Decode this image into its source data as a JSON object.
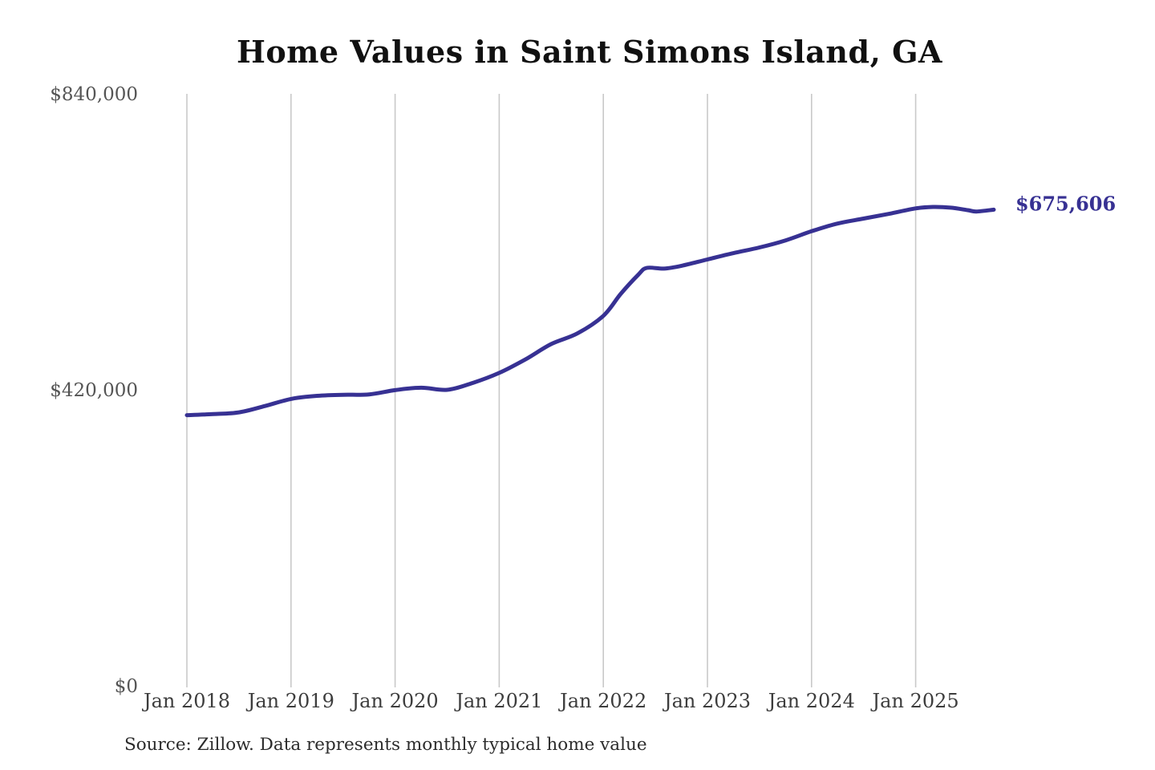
{
  "page": {
    "title": "Home Values in Saint Simons Island, GA",
    "source_note": "Source: Zillow. Data represents monthly typical home value"
  },
  "colors": {
    "background": "#ffffff",
    "line": "#373193",
    "grid": "#c9c9c9",
    "y_tick_text": "#555555",
    "x_tick_text": "#3d3d3d",
    "title_text": "#111111",
    "source_text": "#2b2b2b",
    "end_label_text": "#373193"
  },
  "chart_data": {
    "type": "line",
    "title": "Home Values in Saint Simons Island, GA",
    "xlabel": "",
    "ylabel": "",
    "ylim": [
      0,
      840000
    ],
    "grid": "vertical-only",
    "legend": "none",
    "y_ticks": [
      {
        "value": 840000,
        "label": "$840,000"
      },
      {
        "value": 420000,
        "label": "$420,000"
      },
      {
        "value": 0,
        "label": "$0"
      }
    ],
    "x_ticks": [
      {
        "date": "2018-01",
        "label": "Jan 2018"
      },
      {
        "date": "2019-01",
        "label": "Jan 2019"
      },
      {
        "date": "2020-01",
        "label": "Jan 2020"
      },
      {
        "date": "2021-01",
        "label": "Jan 2021"
      },
      {
        "date": "2022-01",
        "label": "Jan 2022"
      },
      {
        "date": "2023-01",
        "label": "Jan 2023"
      },
      {
        "date": "2024-01",
        "label": "Jan 2024"
      },
      {
        "date": "2025-01",
        "label": "Jan 2025"
      }
    ],
    "end_annotation": {
      "label": "$675,606",
      "value": 675606,
      "date": "2025-10"
    },
    "series": [
      {
        "name": "Monthly typical home value",
        "points": [
          {
            "date": "2018-01",
            "value": 384000
          },
          {
            "date": "2018-04",
            "value": 385500
          },
          {
            "date": "2018-07",
            "value": 388000
          },
          {
            "date": "2018-10",
            "value": 397000
          },
          {
            "date": "2019-01",
            "value": 407000
          },
          {
            "date": "2019-04",
            "value": 411500
          },
          {
            "date": "2019-07",
            "value": 413000
          },
          {
            "date": "2019-10",
            "value": 413500
          },
          {
            "date": "2020-01",
            "value": 419500
          },
          {
            "date": "2020-04",
            "value": 423000
          },
          {
            "date": "2020-07",
            "value": 420000
          },
          {
            "date": "2020-10",
            "value": 430000
          },
          {
            "date": "2021-01",
            "value": 444000
          },
          {
            "date": "2021-04",
            "value": 463000
          },
          {
            "date": "2021-07",
            "value": 485000
          },
          {
            "date": "2021-10",
            "value": 500000
          },
          {
            "date": "2022-01",
            "value": 525000
          },
          {
            "date": "2022-03",
            "value": 556000
          },
          {
            "date": "2022-05",
            "value": 583000
          },
          {
            "date": "2022-06",
            "value": 593000
          },
          {
            "date": "2022-08",
            "value": 592000
          },
          {
            "date": "2022-10",
            "value": 596000
          },
          {
            "date": "2023-01",
            "value": 605000
          },
          {
            "date": "2023-04",
            "value": 614000
          },
          {
            "date": "2023-07",
            "value": 622000
          },
          {
            "date": "2023-10",
            "value": 632000
          },
          {
            "date": "2024-01",
            "value": 645000
          },
          {
            "date": "2024-04",
            "value": 656000
          },
          {
            "date": "2024-07",
            "value": 663000
          },
          {
            "date": "2024-10",
            "value": 670000
          },
          {
            "date": "2025-01",
            "value": 677500
          },
          {
            "date": "2025-03",
            "value": 679500
          },
          {
            "date": "2025-05",
            "value": 678500
          },
          {
            "date": "2025-07",
            "value": 675000
          },
          {
            "date": "2025-08",
            "value": 673000
          },
          {
            "date": "2025-10",
            "value": 675606
          }
        ]
      }
    ]
  }
}
